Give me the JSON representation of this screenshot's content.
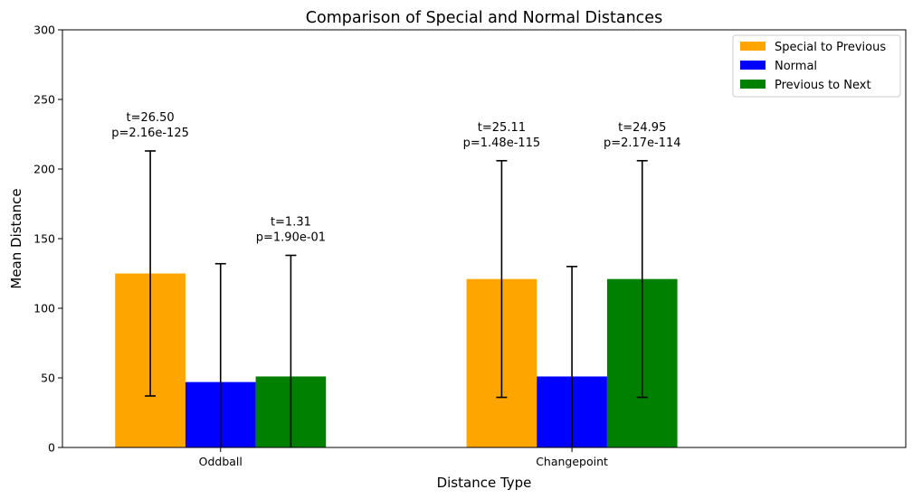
{
  "chart_data": {
    "type": "bar",
    "title": "Comparison of Special and Normal Distances",
    "xlabel": "Distance Type",
    "ylabel": "Mean Distance",
    "ylim": [
      0,
      300
    ],
    "yticks": [
      0,
      50,
      100,
      150,
      200,
      250,
      300
    ],
    "categories": [
      "Oddball",
      "Changepoint"
    ],
    "series": [
      {
        "name": "Special to Previous",
        "color": "#FFA500",
        "values": [
          125,
          121
        ],
        "errors": [
          88,
          85
        ]
      },
      {
        "name": "Normal",
        "color": "#0000FF",
        "values": [
          47,
          51
        ],
        "errors": [
          85,
          79
        ]
      },
      {
        "name": "Previous to Next",
        "color": "#008000",
        "values": [
          51,
          121
        ],
        "errors": [
          87,
          85
        ]
      }
    ],
    "annotations": [
      {
        "category": 0,
        "series": 0,
        "line1": "t=26.50",
        "line2": "p=2.16e-125"
      },
      {
        "category": 0,
        "series": 2,
        "line1": "t=1.31",
        "line2": "p=1.90e-01"
      },
      {
        "category": 1,
        "series": 0,
        "line1": "t=25.11",
        "line2": "p=1.48e-115"
      },
      {
        "category": 1,
        "series": 2,
        "line1": "t=24.95",
        "line2": "p=2.17e-114"
      }
    ],
    "legend_position": "top-right",
    "grid": false
  }
}
